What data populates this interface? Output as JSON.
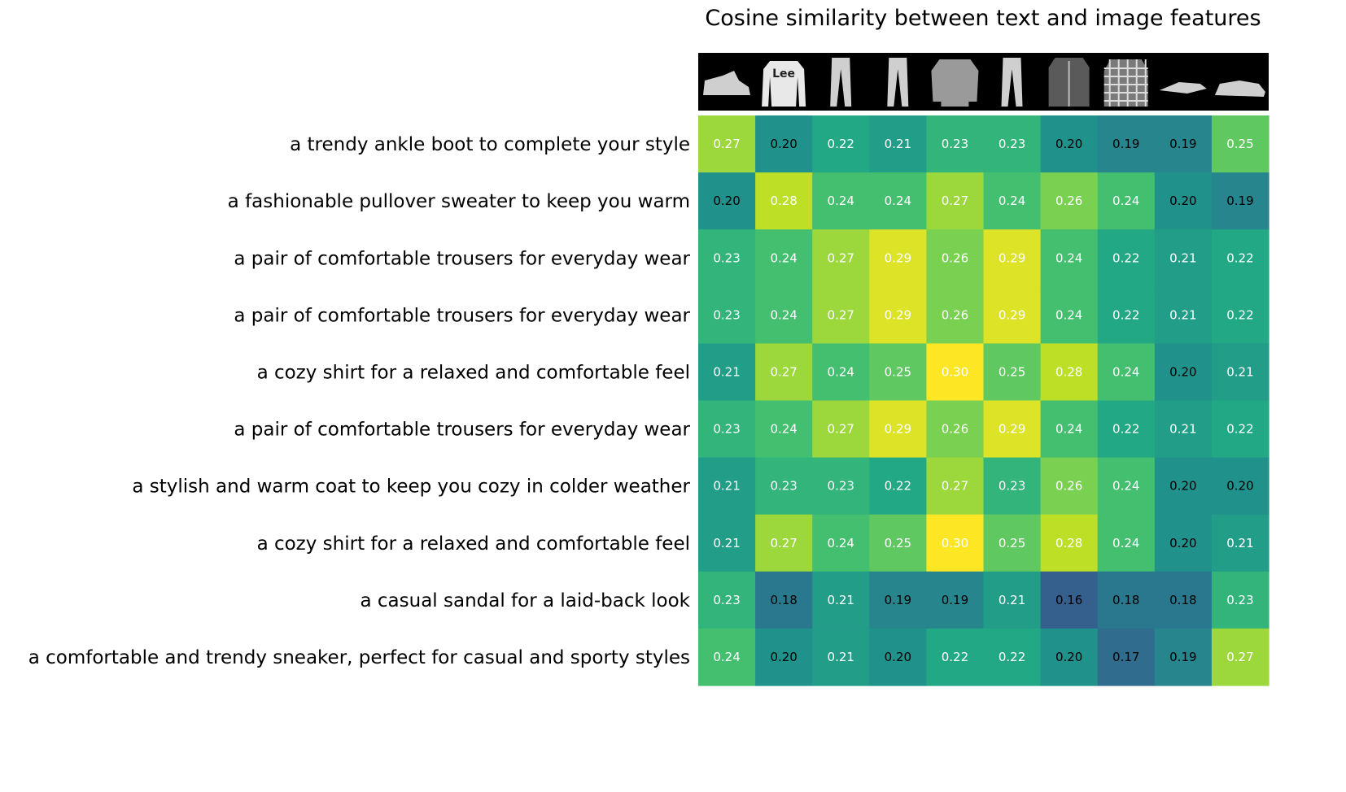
{
  "chart_data": {
    "type": "heatmap",
    "title": "Cosine similarity between text and image features",
    "rows": [
      "a trendy ankle boot to complete your style",
      "a fashionable pullover sweater to keep you warm",
      "a pair of comfortable trousers for everyday wear",
      "a pair of comfortable trousers for everyday wear",
      "a cozy shirt for a relaxed and comfortable feel",
      "a pair of comfortable trousers for everyday wear",
      "a stylish and warm coat to keep you cozy in colder weather",
      "a cozy shirt for a relaxed and comfortable feel",
      "a casual sandal for a laid-back look",
      "a comfortable and trendy sneaker, perfect for casual and sporty styles"
    ],
    "columns": [
      {
        "image": "ankle-boot",
        "logo_text": ""
      },
      {
        "image": "pullover-sweater",
        "logo_text": "Lee"
      },
      {
        "image": "trousers",
        "logo_text": ""
      },
      {
        "image": "trousers",
        "logo_text": ""
      },
      {
        "image": "shirt",
        "logo_text": ""
      },
      {
        "image": "trousers",
        "logo_text": ""
      },
      {
        "image": "coat",
        "logo_text": ""
      },
      {
        "image": "plaid-shirt",
        "logo_text": ""
      },
      {
        "image": "sandal",
        "logo_text": ""
      },
      {
        "image": "sneaker",
        "logo_text": ""
      }
    ],
    "values": [
      [
        0.27,
        0.2,
        0.22,
        0.21,
        0.23,
        0.23,
        0.2,
        0.19,
        0.19,
        0.25
      ],
      [
        0.2,
        0.28,
        0.24,
        0.24,
        0.27,
        0.24,
        0.26,
        0.24,
        0.2,
        0.19
      ],
      [
        0.23,
        0.24,
        0.27,
        0.29,
        0.26,
        0.29,
        0.24,
        0.22,
        0.21,
        0.22
      ],
      [
        0.23,
        0.24,
        0.27,
        0.29,
        0.26,
        0.29,
        0.24,
        0.22,
        0.21,
        0.22
      ],
      [
        0.21,
        0.27,
        0.24,
        0.25,
        0.3,
        0.25,
        0.28,
        0.24,
        0.2,
        0.21
      ],
      [
        0.23,
        0.24,
        0.27,
        0.29,
        0.26,
        0.29,
        0.24,
        0.22,
        0.21,
        0.22
      ],
      [
        0.21,
        0.23,
        0.23,
        0.22,
        0.27,
        0.23,
        0.26,
        0.24,
        0.2,
        0.2
      ],
      [
        0.21,
        0.27,
        0.24,
        0.25,
        0.3,
        0.25,
        0.28,
        0.24,
        0.2,
        0.21
      ],
      [
        0.23,
        0.18,
        0.21,
        0.19,
        0.19,
        0.21,
        0.16,
        0.18,
        0.18,
        0.23
      ],
      [
        0.24,
        0.2,
        0.21,
        0.2,
        0.22,
        0.22,
        0.2,
        0.17,
        0.19,
        0.27
      ]
    ],
    "value_range": [
      0.1,
      0.3
    ],
    "colormap": "viridis",
    "label_threshold": 0.2,
    "label_color_high": "#ffffff",
    "label_color_low": "#000000",
    "grid": false,
    "legend": "none"
  }
}
